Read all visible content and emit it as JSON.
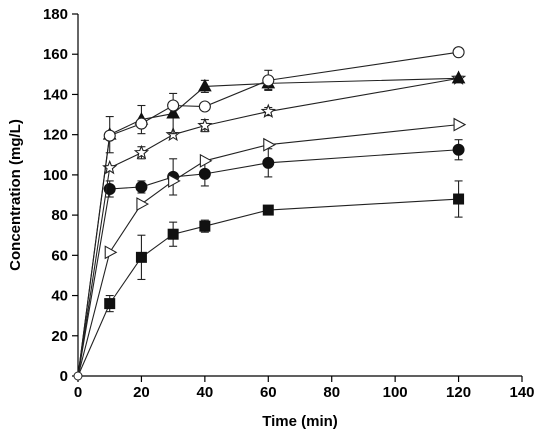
{
  "chart_data": {
    "type": "line",
    "title": "",
    "xlabel": "Time (min)",
    "ylabel": "Concentration (mg/L)",
    "xlim": [
      0,
      140
    ],
    "ylim": [
      0,
      180
    ],
    "xticks": [
      "0",
      "20",
      "40",
      "60",
      "80",
      "100",
      "120",
      "140"
    ],
    "yticks": [
      "0",
      "20",
      "40",
      "60",
      "80",
      "100",
      "120",
      "140",
      "160",
      "180"
    ],
    "grid": false,
    "legend": "none",
    "series": [
      {
        "marker": "square-filled",
        "x": [
          0,
          10,
          20,
          30,
          40,
          60,
          120
        ],
        "y": [
          0,
          36,
          59,
          70.5,
          74.5,
          82.5,
          88
        ],
        "err": [
          0,
          4,
          11,
          6,
          3,
          2,
          9
        ]
      },
      {
        "marker": "circle-filled",
        "x": [
          0,
          10,
          20,
          30,
          40,
          60,
          120
        ],
        "y": [
          0,
          93,
          94,
          99,
          100.5,
          106,
          112.5
        ],
        "err": [
          0,
          4,
          3,
          9,
          6,
          7,
          5
        ]
      },
      {
        "marker": "triangle-right-open",
        "x": [
          0,
          10,
          20,
          30,
          40,
          60,
          120
        ],
        "y": [
          0,
          61.5,
          85.5,
          97,
          107,
          115,
          125
        ],
        "err": [
          0,
          0,
          0,
          0,
          0,
          0,
          0
        ]
      },
      {
        "marker": "star-open",
        "x": [
          0,
          10,
          20,
          30,
          40,
          60,
          120
        ],
        "y": [
          0,
          103.5,
          111,
          120,
          124.5,
          131.5,
          148
        ],
        "err": [
          0,
          0,
          3,
          0,
          3,
          2,
          0
        ]
      },
      {
        "marker": "triangle-up-filled",
        "x": [
          0,
          10,
          20,
          30,
          40,
          60,
          120
        ],
        "y": [
          0,
          120,
          127.5,
          130.5,
          144,
          145.5,
          148
        ],
        "err": [
          0,
          9,
          7,
          10,
          3,
          3,
          0
        ]
      },
      {
        "marker": "circle-open",
        "x": [
          0,
          10,
          20,
          30,
          40,
          60,
          120
        ],
        "y": [
          0,
          119.5,
          125.5,
          134.5,
          134,
          147,
          161
        ],
        "err": [
          0,
          0,
          0,
          0,
          0,
          5,
          0
        ]
      }
    ]
  }
}
